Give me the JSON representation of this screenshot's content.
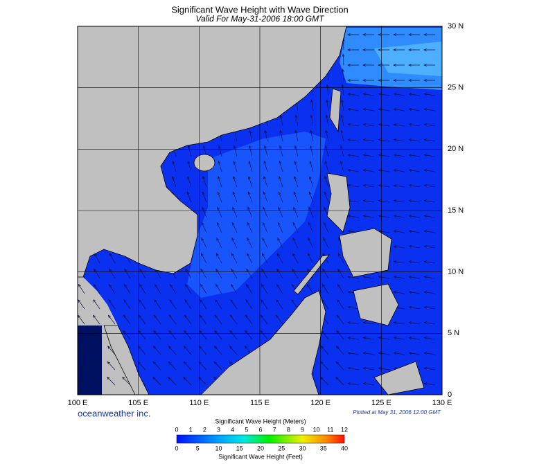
{
  "header": {
    "title": "Significant Wave Height with Wave Direction",
    "subtitle": "Valid For May-31-2006 18:00 GMT"
  },
  "map": {
    "lon_ticks": [
      "100 E",
      "105 E",
      "110 E",
      "115 E",
      "120 E",
      "125 E",
      "130 E"
    ],
    "lat_ticks": [
      "0",
      "5 N",
      "10 N",
      "15 N",
      "20 N",
      "25 N",
      "30 N"
    ]
  },
  "credit": "oceanweather inc.",
  "plotted": "Plotted at May 31, 2006 12:00 GMT",
  "legend": {
    "title_top": "Significant Wave Height (Meters)",
    "meters": [
      "0",
      "1",
      "2",
      "3",
      "4",
      "5",
      "6",
      "7",
      "8",
      "9",
      "10",
      "11",
      "12"
    ],
    "feet": [
      "0",
      "5",
      "10",
      "15",
      "20",
      "25",
      "30",
      "35",
      "40"
    ],
    "title_bottom": "Significant Wave Height (Feet)"
  }
}
